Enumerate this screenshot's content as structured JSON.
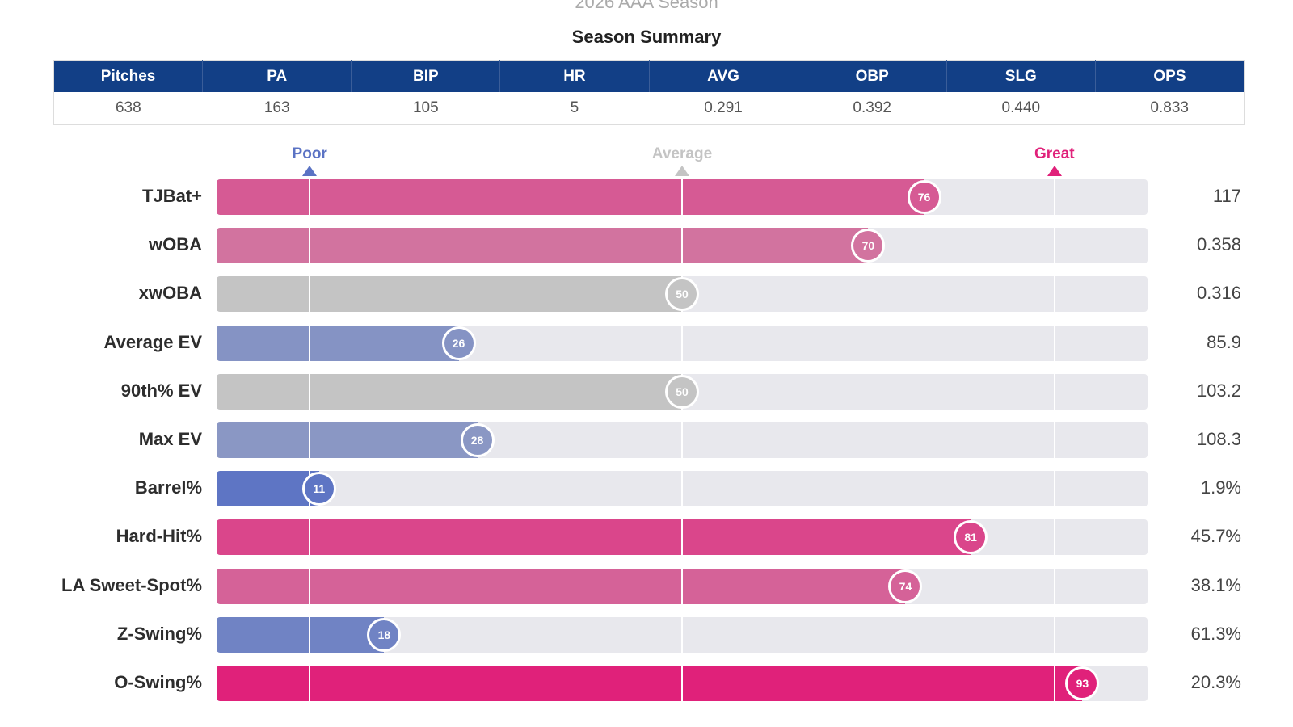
{
  "season_title": "2026 AAA Season",
  "summary": {
    "title": "Season Summary",
    "columns": [
      "Pitches",
      "PA",
      "BIP",
      "HR",
      "AVG",
      "OBP",
      "SLG",
      "OPS"
    ],
    "values": [
      "638",
      "163",
      "105",
      "5",
      "0.291",
      "0.392",
      "0.440",
      "0.833"
    ]
  },
  "colors": {
    "header_bg": "#123f86",
    "poor": "#5b73c4",
    "average": "#c4c4c4",
    "great": "#e0217a",
    "track": "#e8e8ed"
  },
  "chart_data": {
    "type": "bar",
    "title": "",
    "scale": {
      "min": 0,
      "max": 100,
      "markers": [
        {
          "label": "Poor",
          "value": 10
        },
        {
          "label": "Average",
          "value": 50
        },
        {
          "label": "Great",
          "value": 90
        }
      ]
    },
    "categories": [
      "TJBat+",
      "wOBA",
      "xwOBA",
      "Average EV",
      "90th% EV",
      "Max EV",
      "Barrel%",
      "Hard-Hit%",
      "LA Sweet-Spot%",
      "Z-Swing%",
      "O-Swing%"
    ],
    "percentiles": [
      76,
      70,
      50,
      26,
      50,
      28,
      11,
      81,
      74,
      18,
      93
    ],
    "values": [
      "117",
      "0.358",
      "0.316",
      "85.9",
      "103.2",
      "108.3",
      "1.9%",
      "45.7%",
      "38.1%",
      "61.3%",
      "20.3%"
    ],
    "grid": false,
    "legend": "none"
  }
}
